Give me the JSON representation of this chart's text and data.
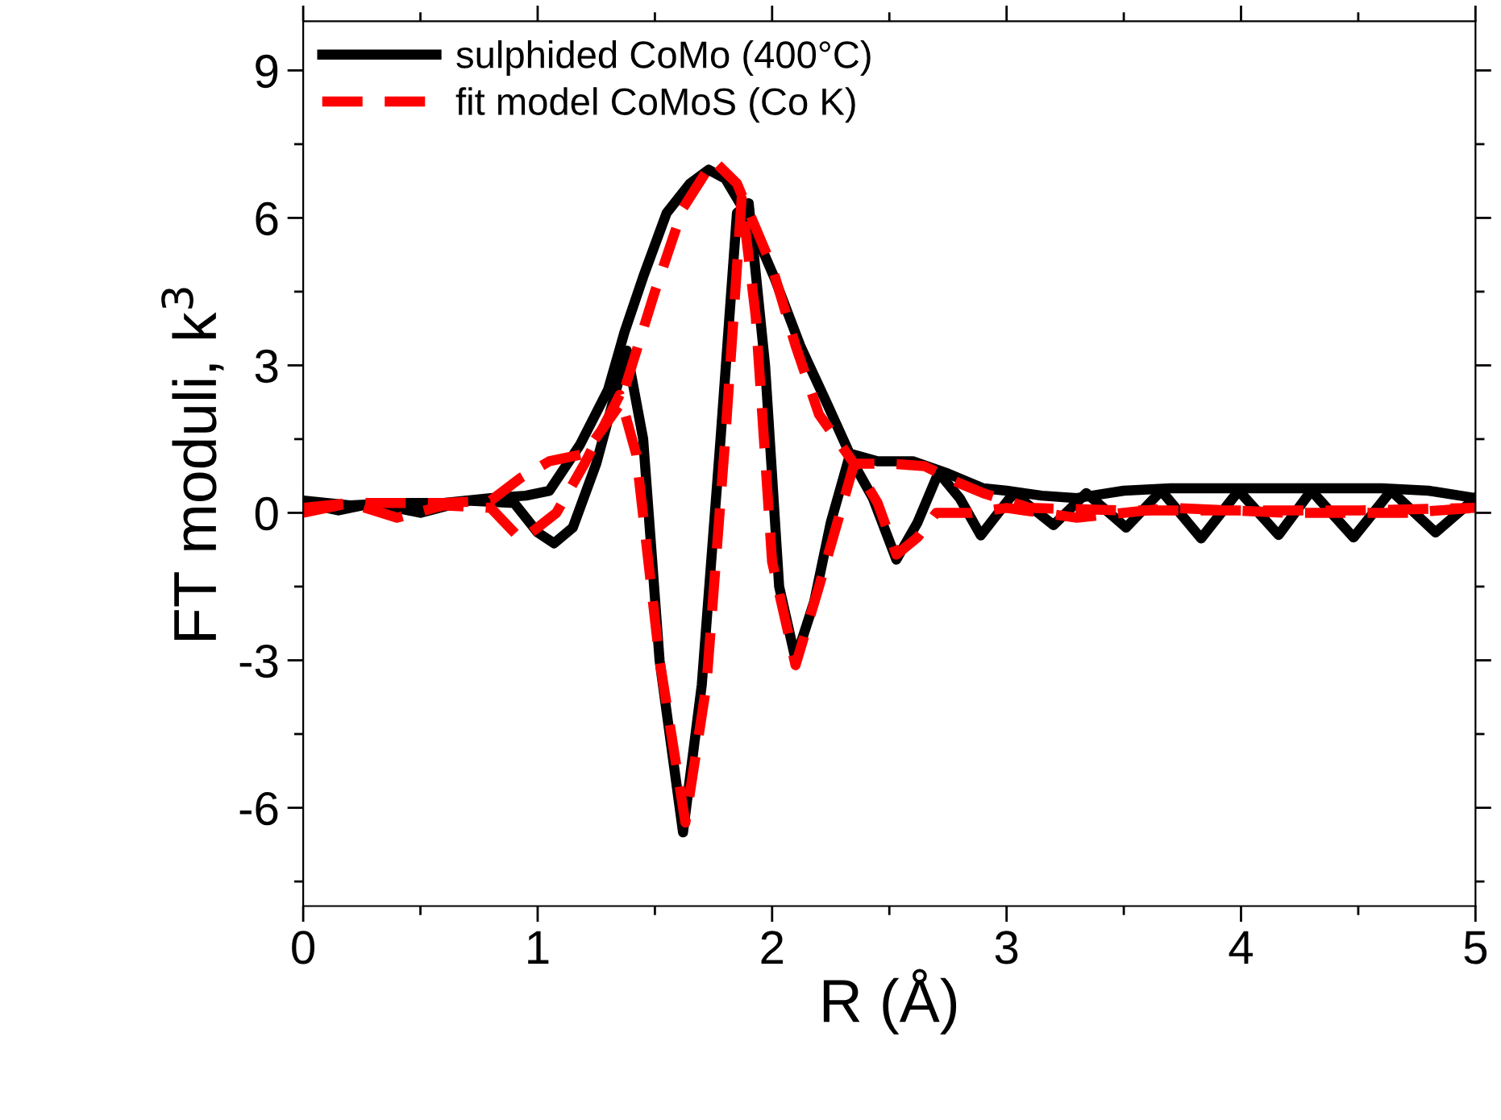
{
  "chart_data": {
    "type": "line",
    "xlabel": "R (Å)",
    "ylabel": "FT moduli, k$^{3}$",
    "xlim": [
      0,
      5
    ],
    "ylim": [
      -8,
      10
    ],
    "xticks": [
      0,
      1,
      2,
      3,
      4,
      5
    ],
    "yticks": [
      {
        "value": -6,
        "label": "-6"
      },
      {
        "value": -3,
        "label": "-3"
      },
      0,
      3,
      6,
      9
    ],
    "grid": false,
    "legend": "top left",
    "marker": "none",
    "series": [
      {
        "name": "sulphided CoMo (400°C)",
        "color": "#000000",
        "line_style": "solid",
        "x": [
          0,
          0.2,
          0.4,
          0.6,
          0.8,
          0.95,
          1.05,
          1.18,
          1.3,
          1.37,
          1.45,
          1.55,
          1.65,
          1.73,
          1.8,
          1.9,
          2.01,
          2.12,
          2.24,
          2.33,
          2.45,
          2.6,
          2.75,
          2.9,
          3.0,
          3.15,
          3.3,
          3.5,
          3.7,
          4.0,
          4.3,
          4.6,
          4.8,
          5.0
        ],
        "values": [
          0.25,
          0.15,
          0.2,
          0.2,
          0.3,
          0.35,
          0.45,
          1.38,
          2.5,
          3.67,
          4.8,
          6.1,
          6.7,
          6.98,
          6.8,
          6.0,
          4.78,
          3.4,
          2.16,
          1.21,
          1.05,
          1.05,
          0.8,
          0.5,
          0.45,
          0.35,
          0.3,
          0.45,
          0.5,
          0.5,
          0.5,
          0.5,
          0.45,
          0.3
        ]
      },
      {
        "color": "#000000",
        "line_style": "solid",
        "x": [
          0,
          0.15,
          0.3,
          0.5,
          0.7,
          0.9,
          1.0,
          1.07,
          1.15,
          1.25,
          1.38,
          1.45,
          1.52,
          1.62,
          1.7,
          1.78,
          1.85,
          1.9,
          1.97,
          2.03,
          2.1,
          2.18,
          2.25,
          2.33,
          2.43,
          2.53,
          2.62,
          2.71,
          2.8,
          2.89,
          3.03,
          3.2,
          3.34,
          3.51,
          3.66,
          3.83,
          3.99,
          4.16,
          4.3,
          4.48,
          4.64,
          4.83,
          5.0
        ],
        "values": [
          0.2,
          0.05,
          0.2,
          0.0,
          0.25,
          0.2,
          -0.4,
          -0.62,
          -0.3,
          1.0,
          3.3,
          1.5,
          -3.0,
          -6.5,
          -3.5,
          1.5,
          6.1,
          6.3,
          3.0,
          -1.5,
          -2.98,
          -1.8,
          -0.2,
          1.15,
          0.3,
          -0.95,
          -0.2,
          0.82,
          0.3,
          -0.46,
          0.4,
          -0.25,
          0.4,
          -0.3,
          0.45,
          -0.52,
          0.45,
          -0.45,
          0.45,
          -0.5,
          0.45,
          -0.4,
          0.3
        ]
      },
      {
        "name": "fit model CoMoS (Co K)",
        "color": "#ff0000",
        "line_style": "dashed",
        "x": [
          0,
          0.2,
          0.4,
          0.6,
          0.8,
          0.93,
          1.05,
          1.2,
          1.35,
          1.5,
          1.62,
          1.75,
          1.85,
          2.0,
          2.1,
          2.2,
          2.35,
          2.5,
          2.65,
          2.8,
          2.9,
          3.1,
          3.5,
          4.0,
          4.5,
          5.0
        ],
        "values": [
          0.1,
          0.2,
          0.2,
          0.2,
          0.25,
          0.72,
          1.05,
          1.2,
          2.2,
          4.5,
          6.2,
          7.17,
          6.7,
          5.0,
          3.4,
          2.0,
          1.0,
          1.0,
          0.95,
          0.6,
          0.4,
          0.1,
          0.05,
          0.05,
          0.05,
          0.1
        ]
      },
      {
        "color": "#ff0000",
        "line_style": "dashed",
        "x": [
          0,
          0.2,
          0.4,
          0.6,
          0.8,
          0.93,
          1.0,
          1.08,
          1.2,
          1.35,
          1.42,
          1.52,
          1.63,
          1.72,
          1.8,
          1.87,
          1.93,
          2.0,
          2.1,
          2.2,
          2.35,
          2.45,
          2.53,
          2.62,
          2.7,
          2.85,
          3.0,
          3.3,
          3.7,
          4.2,
          4.7,
          5.0
        ],
        "values": [
          0.0,
          0.2,
          -0.1,
          0.15,
          0.1,
          -0.55,
          -0.3,
          0.0,
          1.0,
          2.4,
          1.2,
          -3.0,
          -6.3,
          -3.5,
          1.5,
          6.4,
          4.0,
          -1.0,
          -3.1,
          -1.5,
          1.0,
          0.2,
          -0.85,
          -0.5,
          0.0,
          0.0,
          0.1,
          -0.1,
          0.1,
          0.0,
          0.0,
          0.1
        ]
      }
    ]
  }
}
